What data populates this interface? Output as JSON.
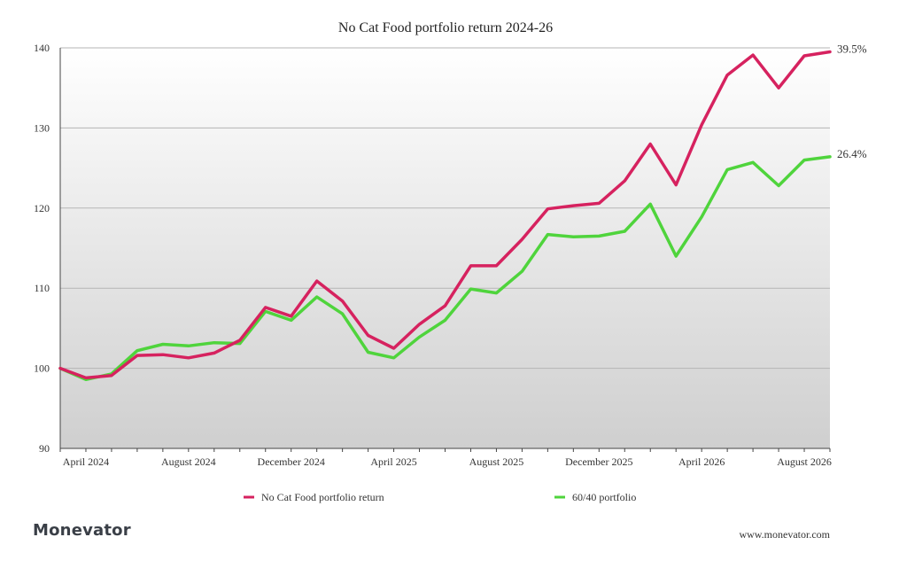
{
  "chart_data": {
    "type": "line",
    "title": "No Cat Food portfolio return 2024-26",
    "x": [
      "2024-03",
      "2024-04",
      "2024-05",
      "2024-06",
      "2024-07",
      "2024-08",
      "2024-09",
      "2024-10",
      "2024-11",
      "2024-12",
      "2025-01",
      "2025-02",
      "2025-03",
      "2025-04",
      "2025-05",
      "2025-06",
      "2025-07",
      "2025-08",
      "2025-09",
      "2025-10",
      "2025-11",
      "2025-12",
      "2026-01",
      "2026-02",
      "2026-03",
      "2026-04",
      "2026-05",
      "2026-06",
      "2026-07",
      "2026-08",
      "2026-09"
    ],
    "x_tick_labels": [
      "April 2024",
      "August 2024",
      "December 2024",
      "April 2025",
      "August 2025",
      "December 2025",
      "April 2026",
      "August 2026"
    ],
    "ylim": [
      90,
      140
    ],
    "y_ticks": [
      90,
      100,
      110,
      120,
      130,
      140
    ],
    "grid": true,
    "legend_position": "bottom",
    "series": [
      {
        "name": "No Cat Food portfolio return",
        "color": "#d6225f",
        "end_label": "39.5%",
        "values": [
          100,
          98.8,
          99.1,
          101.6,
          101.7,
          101.3,
          101.9,
          103.5,
          107.6,
          106.5,
          110.9,
          108.4,
          104.1,
          102.5,
          105.5,
          107.8,
          112.8,
          112.8,
          116.1,
          119.9,
          120.3,
          120.6,
          123.4,
          128.0,
          122.9,
          130.4,
          136.6,
          139.1,
          135.0,
          139.0,
          139.5
        ]
      },
      {
        "name": "60/40 portfolio",
        "color": "#4fd43c",
        "end_label": "26.4%",
        "values": [
          100,
          98.6,
          99.3,
          102.2,
          103.0,
          102.8,
          103.2,
          103.1,
          107.1,
          106.0,
          108.9,
          106.8,
          102.0,
          101.3,
          103.9,
          106.0,
          109.9,
          109.4,
          112.1,
          116.7,
          116.4,
          116.5,
          117.1,
          120.5,
          114.0,
          118.9,
          124.8,
          125.7,
          122.8,
          126.0,
          126.4
        ]
      }
    ]
  },
  "branding": {
    "logo_text": "Monevator",
    "website": "www.monevator.com"
  }
}
